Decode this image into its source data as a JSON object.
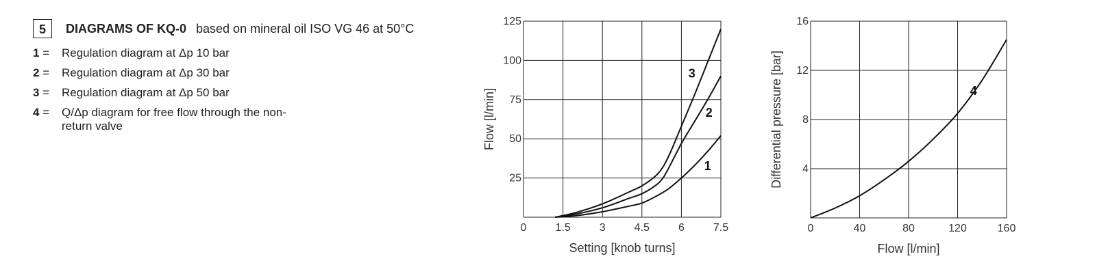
{
  "header": {
    "section_number": "5",
    "title": "DIAGRAMS OF KQ-0",
    "subtitle": "based on mineral oil ISO VG 46 at 50°C"
  },
  "legend": [
    {
      "key": "1",
      "text": "Regulation diagram at Δp 10 bar"
    },
    {
      "key": "2",
      "text": "Regulation diagram at Δp 30 bar"
    },
    {
      "key": "3",
      "text": "Regulation diagram at Δp 50 bar"
    },
    {
      "key": "4",
      "text": "Q/Δp diagram for free flow through the non-return valve"
    }
  ],
  "chart_data": [
    {
      "type": "line",
      "xlabel": "Setting [knob turns]",
      "ylabel": "Flow [l/min]",
      "xlim": [
        0,
        7.5
      ],
      "ylim": [
        0,
        125
      ],
      "xticks": [
        "0",
        "1.5",
        "3",
        "4.5",
        "6",
        "7.5"
      ],
      "yticks": [
        "25",
        "50",
        "75",
        "100",
        "125"
      ],
      "grid": true,
      "series": [
        {
          "name": "1",
          "x": [
            1.2,
            2,
            3,
            4,
            4.5,
            5,
            5.5,
            6,
            6.5,
            7,
            7.5
          ],
          "y": [
            0,
            1,
            3.5,
            7,
            9,
            13,
            18,
            25,
            33,
            42,
            52
          ]
        },
        {
          "name": "2",
          "x": [
            1.2,
            2,
            3,
            4,
            4.5,
            5,
            5.3,
            5.6,
            6,
            6.5,
            7,
            7.5
          ],
          "y": [
            0,
            2,
            6,
            12,
            15,
            20,
            25,
            34,
            47,
            61,
            75,
            90
          ]
        },
        {
          "name": "3",
          "x": [
            1.2,
            2,
            3,
            4,
            4.5,
            5,
            5.3,
            5.6,
            6,
            6.5,
            7,
            7.5
          ],
          "y": [
            0,
            3,
            8.5,
            16,
            20,
            26,
            32,
            42,
            58,
            78,
            99,
            120
          ]
        }
      ]
    },
    {
      "type": "line",
      "xlabel": "Flow [l/min]",
      "ylabel": "Differential pressure [bar]",
      "xlim": [
        0,
        160
      ],
      "ylim": [
        0,
        16
      ],
      "xticks": [
        "0",
        "40",
        "80",
        "120",
        "160"
      ],
      "yticks": [
        "4",
        "8",
        "12",
        "16"
      ],
      "grid": true,
      "series": [
        {
          "name": "4",
          "x": [
            0,
            20,
            40,
            60,
            80,
            100,
            120,
            140,
            160
          ],
          "y": [
            0,
            0.8,
            1.8,
            3.1,
            4.6,
            6.4,
            8.5,
            11.2,
            14.5
          ]
        }
      ]
    }
  ]
}
